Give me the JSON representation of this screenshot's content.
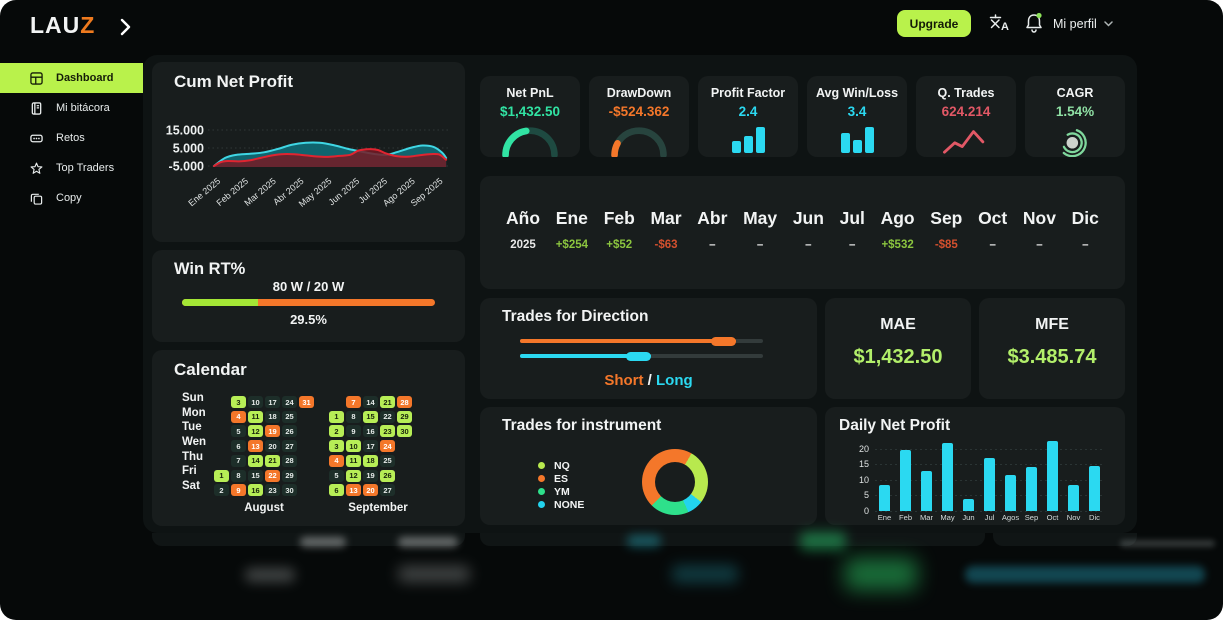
{
  "header": {
    "logo_lau": "LAU",
    "logo_z": "Z",
    "upgrade_label": "Upgrade",
    "profile_label": "Mi perfil"
  },
  "sidebar": {
    "items": [
      {
        "label": "Dashboard",
        "active": true
      },
      {
        "label": "Mi bitácora",
        "active": false
      },
      {
        "label": "Retos",
        "active": false
      },
      {
        "label": "Top Traders",
        "active": false
      },
      {
        "label": "Copy",
        "active": false
      }
    ]
  },
  "win": {
    "title": "Win RT%",
    "ratio_label": "80 W / 20 W",
    "pct_label": "29.5%",
    "green_pct": 30
  },
  "calendar": {
    "title": "Calendar",
    "day_labels": [
      "Sun",
      "Mon",
      "Tue",
      "Wen",
      "Thu",
      "Fri",
      "Sat"
    ],
    "months": [
      {
        "name": "August",
        "rows": [
          [
            {
              "c": 1,
              "d": 3,
              "t": "g"
            },
            {
              "c": 2,
              "d": 10,
              "t": "n"
            },
            {
              "c": 3,
              "d": 17,
              "t": "n"
            },
            {
              "c": 4,
              "d": 24,
              "t": "n"
            },
            {
              "c": 5,
              "d": 31,
              "t": "o"
            }
          ],
          [
            {
              "c": 1,
              "d": 4,
              "t": "o"
            },
            {
              "c": 2,
              "d": 11,
              "t": "g"
            },
            {
              "c": 3,
              "d": 18,
              "t": "n"
            },
            {
              "c": 4,
              "d": 25,
              "t": "n"
            }
          ],
          [
            {
              "c": 1,
              "d": 5,
              "t": "n"
            },
            {
              "c": 2,
              "d": 12,
              "t": "g"
            },
            {
              "c": 3,
              "d": 19,
              "t": "o"
            },
            {
              "c": 4,
              "d": 26,
              "t": "n"
            }
          ],
          [
            {
              "c": 1,
              "d": 6,
              "t": "n"
            },
            {
              "c": 2,
              "d": 13,
              "t": "o"
            },
            {
              "c": 3,
              "d": 20,
              "t": "n"
            },
            {
              "c": 4,
              "d": 27,
              "t": "n"
            }
          ],
          [
            {
              "c": 1,
              "d": 7,
              "t": "n"
            },
            {
              "c": 2,
              "d": 14,
              "t": "g"
            },
            {
              "c": 3,
              "d": 21,
              "t": "g"
            },
            {
              "c": 4,
              "d": 28,
              "t": "n"
            }
          ],
          [
            {
              "c": 0,
              "d": 1,
              "t": "g"
            },
            {
              "c": 1,
              "d": 8,
              "t": "n"
            },
            {
              "c": 2,
              "d": 15,
              "t": "n"
            },
            {
              "c": 3,
              "d": 22,
              "t": "o"
            },
            {
              "c": 4,
              "d": 29,
              "t": "n"
            }
          ],
          [
            {
              "c": 0,
              "d": 2,
              "t": "n"
            },
            {
              "c": 1,
              "d": 9,
              "t": "o"
            },
            {
              "c": 2,
              "d": 16,
              "t": "g"
            },
            {
              "c": 3,
              "d": 23,
              "t": "n"
            },
            {
              "c": 4,
              "d": 30,
              "t": "n"
            }
          ]
        ]
      },
      {
        "name": "September",
        "rows": [
          [
            {
              "c": 1,
              "d": 7,
              "t": "o"
            },
            {
              "c": 2,
              "d": 14,
              "t": "n"
            },
            {
              "c": 3,
              "d": 21,
              "t": "g"
            },
            {
              "c": 4,
              "d": 28,
              "t": "o"
            }
          ],
          [
            {
              "c": 0,
              "d": 1,
              "t": "g"
            },
            {
              "c": 1,
              "d": 8,
              "t": "n"
            },
            {
              "c": 2,
              "d": 15,
              "t": "g"
            },
            {
              "c": 3,
              "d": 22,
              "t": "n"
            },
            {
              "c": 4,
              "d": 29,
              "t": "g"
            }
          ],
          [
            {
              "c": 0,
              "d": 2,
              "t": "g"
            },
            {
              "c": 1,
              "d": 9,
              "t": "n"
            },
            {
              "c": 2,
              "d": 16,
              "t": "n"
            },
            {
              "c": 3,
              "d": 23,
              "t": "g"
            },
            {
              "c": 4,
              "d": 30,
              "t": "g"
            }
          ],
          [
            {
              "c": 0,
              "d": 3,
              "t": "g"
            },
            {
              "c": 1,
              "d": 10,
              "t": "g"
            },
            {
              "c": 2,
              "d": 17,
              "t": "n"
            },
            {
              "c": 3,
              "d": 24,
              "t": "o"
            }
          ],
          [
            {
              "c": 0,
              "d": 4,
              "t": "o"
            },
            {
              "c": 1,
              "d": 11,
              "t": "g"
            },
            {
              "c": 2,
              "d": 18,
              "t": "g"
            },
            {
              "c": 3,
              "d": 25,
              "t": "n"
            }
          ],
          [
            {
              "c": 0,
              "d": 5,
              "t": "n"
            },
            {
              "c": 1,
              "d": 12,
              "t": "g"
            },
            {
              "c": 2,
              "d": 19,
              "t": "n"
            },
            {
              "c": 3,
              "d": 26,
              "t": "g"
            }
          ],
          [
            {
              "c": 0,
              "d": 6,
              "t": "g"
            },
            {
              "c": 1,
              "d": 13,
              "t": "o"
            },
            {
              "c": 2,
              "d": 20,
              "t": "o"
            },
            {
              "c": 3,
              "d": 27,
              "t": "n"
            }
          ]
        ]
      }
    ]
  },
  "stats_cards": [
    {
      "label": "Net PnL",
      "value": "$1,432.50",
      "value_color": "#31e3a3",
      "gauge": {
        "pct": 45,
        "fg": "#31e3a3",
        "bg": "#1e4a41"
      }
    },
    {
      "label": "DrawDown",
      "value": "-$524.362",
      "value_color": "#f4772a",
      "gauge": {
        "pct": 16,
        "fg": "#f4772a",
        "bg": "#27443e"
      }
    },
    {
      "label": "Profit Factor",
      "value": "2.4",
      "value_color": "#2bd9f1",
      "bars": [
        12,
        17,
        26
      ]
    },
    {
      "label": "Avg Win/Loss",
      "value": "3.4",
      "value_color": "#2bd9f1",
      "bars": [
        20,
        13,
        26
      ]
    },
    {
      "label": "Q. Trades",
      "value": "624.214",
      "value_color": "#e25866"
    },
    {
      "label": "CAGR",
      "value": "1.54%",
      "value_color": "#8fe0a4"
    }
  ],
  "months_summary": {
    "columns": [
      {
        "header": "Año",
        "value": "2025",
        "tone": "plain"
      },
      {
        "header": "Ene",
        "value": "+$254",
        "tone": "pos"
      },
      {
        "header": "Feb",
        "value": "+$52",
        "tone": "pos"
      },
      {
        "header": "Mar",
        "value": "-$63",
        "tone": "neg"
      },
      {
        "header": "Abr",
        "value": "–",
        "tone": "plain"
      },
      {
        "header": "May",
        "value": "–",
        "tone": "plain"
      },
      {
        "header": "Jun",
        "value": "–",
        "tone": "plain"
      },
      {
        "header": "Jul",
        "value": "–",
        "tone": "plain"
      },
      {
        "header": "Ago",
        "value": "+$532",
        "tone": "pos"
      },
      {
        "header": "Sep",
        "value": "-$85",
        "tone": "neg"
      },
      {
        "header": "Oct",
        "value": "–",
        "tone": "plain"
      },
      {
        "header": "Nov",
        "value": "–",
        "tone": "plain"
      },
      {
        "header": "Dic",
        "value": "–",
        "tone": "plain"
      }
    ]
  },
  "direction": {
    "title": "Trades for Direction",
    "short_label": "Short",
    "separator": " / ",
    "long_label": "Long",
    "short_fill_pct": 89,
    "long_fill_pct": 54
  },
  "mae": {
    "title": "MAE",
    "value": "$1,432.50"
  },
  "mfe": {
    "title": "MFE",
    "value": "$3.485.74"
  },
  "instrument": {
    "title": "Trades for instrument",
    "legend": [
      {
        "label": "NQ",
        "color": "#b8e94e"
      },
      {
        "label": "ES",
        "color": "#f4772a"
      },
      {
        "label": "YM",
        "color": "#2ee08b"
      },
      {
        "label": "NONE",
        "color": "#22d3ee"
      }
    ]
  },
  "chart_data": [
    {
      "type": "area",
      "title": "Cum Net Profit",
      "xlabels": [
        "Ene 2025",
        "Feb 2025",
        "Mar 2025",
        "Abr 2025",
        "May 2025",
        "Jun 2025",
        "Jul 2025",
        "Ago 2025",
        "Sep 2025"
      ],
      "yticks": [
        {
          "v": 15,
          "label": "15.000"
        },
        {
          "v": 5,
          "label": "5.000"
        },
        {
          "v": -5,
          "label": "-5.000"
        }
      ],
      "ylim": [
        -6,
        16
      ],
      "series": [
        {
          "name": "cum-equity",
          "color": "#3fd6e4",
          "fill": "rgba(16,106,117,0.92)",
          "points": [
            [
              0,
              -5
            ],
            [
              0.4,
              -0.5
            ],
            [
              0.8,
              1.2
            ],
            [
              1.3,
              1.8
            ],
            [
              1.8,
              2.6
            ],
            [
              2.3,
              4.5
            ],
            [
              2.8,
              6.8
            ],
            [
              3.3,
              7.9
            ],
            [
              3.8,
              7.9
            ],
            [
              4.3,
              6.6
            ],
            [
              4.8,
              4.6
            ],
            [
              5.3,
              3.0
            ],
            [
              5.8,
              1.6
            ],
            [
              6.2,
              1.2
            ],
            [
              6.6,
              2.8
            ],
            [
              7.1,
              5.2
            ],
            [
              7.5,
              6.4
            ],
            [
              7.9,
              5.6
            ],
            [
              8.2,
              2.5
            ],
            [
              8.35,
              -0.5
            ]
          ]
        },
        {
          "name": "cum-drawdown",
          "color": "#e02430",
          "fill": "rgba(118,26,36,0.85)",
          "points": [
            [
              0,
              -5
            ],
            [
              0.25,
              -2.8
            ],
            [
              0.5,
              -2.2
            ],
            [
              0.9,
              -2.4
            ],
            [
              1.3,
              -1.8
            ],
            [
              1.7,
              -0.4
            ],
            [
              2.1,
              0.9
            ],
            [
              2.5,
              1.6
            ],
            [
              2.9,
              1.5
            ],
            [
              3.3,
              0.9
            ],
            [
              3.7,
              0.3
            ],
            [
              4.1,
              0.1
            ],
            [
              4.5,
              0.6
            ],
            [
              4.9,
              1.2
            ],
            [
              5.2,
              3.6
            ],
            [
              5.6,
              4.4
            ],
            [
              5.9,
              3.9
            ],
            [
              6.2,
              1.9
            ],
            [
              6.6,
              0.4
            ],
            [
              7.0,
              0.2
            ],
            [
              7.4,
              1.0
            ],
            [
              7.8,
              1.6
            ],
            [
              8.1,
              1.4
            ],
            [
              8.35,
              -1.5
            ]
          ]
        }
      ],
      "baseline": -5
    },
    {
      "type": "pie",
      "title": "Trades for instrument",
      "start_deg": 30,
      "segments": [
        {
          "label": "NQ",
          "pct": 27,
          "color": "#b8e94e"
        },
        {
          "label": "NONE",
          "pct": 8,
          "color": "#22d3ee"
        },
        {
          "label": "YM",
          "pct": 19,
          "color": "#2ee08b"
        },
        {
          "label": "ES",
          "pct": 46,
          "color": "#f4772a"
        }
      ]
    },
    {
      "type": "bar",
      "title": "Daily Net Profit",
      "categories": [
        "Ene",
        "Feb",
        "Mar",
        "May",
        "Jun",
        "Jul",
        "Agos",
        "Sep",
        "Oct",
        "Nov",
        "Dic"
      ],
      "values": [
        8.5,
        19.5,
        13,
        22,
        4,
        17,
        11.5,
        14,
        22.5,
        8.5,
        14.5
      ],
      "yticks": [
        0,
        5,
        10,
        15,
        20
      ],
      "ylim": [
        0,
        22.5
      ]
    }
  ]
}
